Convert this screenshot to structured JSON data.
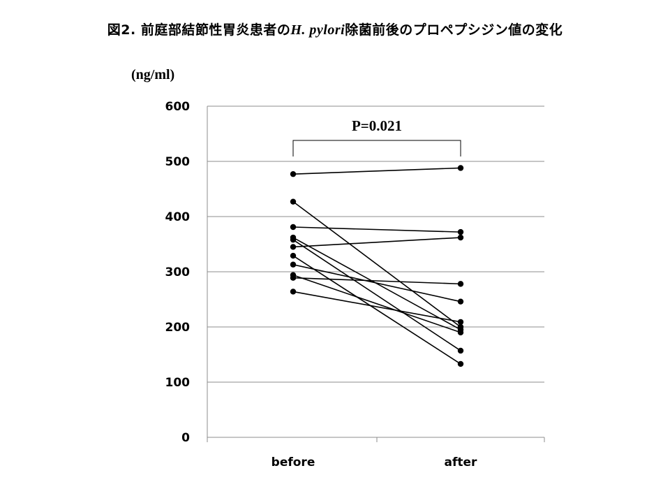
{
  "title": {
    "prefix": "図2. 前庭部結節性胃炎患者の",
    "italic": "H. pylori",
    "suffix": "除菌前後のプロペプシジン値の変化"
  },
  "chart_data": {
    "type": "line",
    "categories": [
      "before",
      "after"
    ],
    "ylabel": "(ng/ml)",
    "ylim": [
      0,
      600
    ],
    "yticks": [
      0,
      100,
      200,
      300,
      400,
      500,
      600
    ],
    "grid": true,
    "annotation": "P=0.021",
    "series": [
      {
        "values": [
          477,
          488
        ]
      },
      {
        "values": [
          427,
          200
        ]
      },
      {
        "values": [
          381,
          372
        ]
      },
      {
        "values": [
          362,
          195
        ]
      },
      {
        "values": [
          358,
          157
        ]
      },
      {
        "values": [
          345,
          362
        ]
      },
      {
        "values": [
          329,
          133
        ]
      },
      {
        "values": [
          313,
          246
        ]
      },
      {
        "values": [
          294,
          190
        ]
      },
      {
        "values": [
          289,
          278
        ]
      },
      {
        "values": [
          264,
          209
        ]
      }
    ]
  }
}
